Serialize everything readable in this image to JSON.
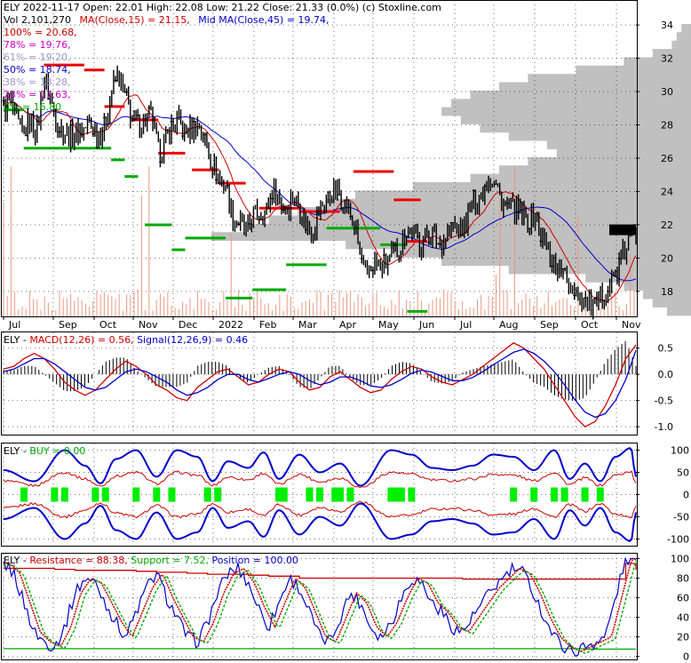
{
  "chart_data": [
    {
      "type": "candlestick",
      "panel": "price",
      "header": {
        "line1": "ELY  2022-11-17 Open: 22.01  High: 22.08  Low: 21.22  Close: 21.33 (0.0%)  (c) Stoxline.com",
        "vol_text": "Vol 2,101,270",
        "ma15_text": "MA(Close,15) = 21.15,",
        "ma45_text": "Mid MA(Close,45) = 19.74,"
      },
      "fib_labels": [
        {
          "text": "100% = 20.68,",
          "color": "#cc0000"
        },
        {
          "text": "78% = 19.76,",
          "color": "#cc00cc"
        },
        {
          "text": "61% = 19.20,",
          "color": "#9999cc"
        },
        {
          "text": "50% = 18.74,",
          "color": "#0000cc"
        },
        {
          "text": "38% = 18.28,",
          "color": "#9999cc"
        },
        {
          "text": "23% = 17.63,",
          "color": "#cc00cc"
        },
        {
          "text": "0% = 16.80",
          "color": "#00aa00"
        }
      ],
      "x_tick_labels": [
        "Jul",
        "Sep",
        "Oct",
        "Nov",
        "Dec",
        "2022",
        "Feb",
        "Mar",
        "Apr",
        "May",
        "Jun",
        "Jul",
        "Aug",
        "Sep",
        "Oct",
        "Nov"
      ],
      "y_ticks": [
        18,
        20,
        22,
        24,
        26,
        28,
        30,
        32,
        34
      ],
      "ylim": [
        16.5,
        35.5
      ],
      "close_path": [
        29,
        29.5,
        28,
        27.5,
        28.3,
        27.6,
        30.8,
        29.5,
        28,
        27.6,
        27.3,
        27.5,
        27.8,
        28,
        27.5,
        27.8,
        30,
        31,
        29.8,
        28.5,
        28,
        28.2,
        28.6,
        26.3,
        26.8,
        27.9,
        28.2,
        27.5,
        27.8,
        28,
        27,
        25.8,
        24.8,
        24.5,
        22.5,
        22.2,
        21.5,
        22.5,
        22.7,
        22.8,
        24.2,
        23.5,
        22.8,
        23.8,
        23,
        22,
        21.6,
        23,
        23.5,
        24,
        23.8,
        23,
        22.2,
        20.2,
        18.8,
        19.8,
        19.4,
        19.7,
        20.2,
        20.8,
        21.8,
        21.5,
        20.8,
        21.5,
        21.2,
        20.8,
        21.5,
        22,
        21.5,
        22.5,
        23.5,
        23.8,
        25,
        24.5,
        23.5,
        23,
        22.8,
        22.5,
        22.3,
        22.6,
        21.2,
        20.5,
        19.5,
        19.2,
        18.5,
        18.2,
        17.5,
        17.2,
        16.8,
        17.8,
        18.3,
        19,
        20,
        21.2,
        21.3
      ],
      "volume_profile": [
        {
          "price": 16.8,
          "value": 5
        },
        {
          "price": 17.3,
          "value": 8
        },
        {
          "price": 17.8,
          "value": 10
        },
        {
          "price": 18.3,
          "value": 14
        },
        {
          "price": 18.8,
          "value": 22
        },
        {
          "price": 19.3,
          "value": 38
        },
        {
          "price": 19.8,
          "value": 52
        },
        {
          "price": 20.3,
          "value": 62
        },
        {
          "price": 20.8,
          "value": 72
        },
        {
          "price": 21.3,
          "value": 100
        },
        {
          "price": 21.8,
          "value": 92
        },
        {
          "price": 22.3,
          "value": 88
        },
        {
          "price": 22.8,
          "value": 82
        },
        {
          "price": 23.3,
          "value": 76
        },
        {
          "price": 23.8,
          "value": 70
        },
        {
          "price": 24.3,
          "value": 58
        },
        {
          "price": 24.8,
          "value": 46
        },
        {
          "price": 25.3,
          "value": 40
        },
        {
          "price": 25.8,
          "value": 34
        },
        {
          "price": 26.3,
          "value": 28
        },
        {
          "price": 26.8,
          "value": 30
        },
        {
          "price": 27.3,
          "value": 38
        },
        {
          "price": 27.8,
          "value": 44
        },
        {
          "price": 28.3,
          "value": 48
        },
        {
          "price": 28.8,
          "value": 52
        },
        {
          "price": 29.3,
          "value": 50
        },
        {
          "price": 29.8,
          "value": 46
        },
        {
          "price": 30.3,
          "value": 40
        },
        {
          "price": 30.8,
          "value": 34
        },
        {
          "price": 31.3,
          "value": 24
        },
        {
          "price": 31.8,
          "value": 14
        },
        {
          "price": 32.3,
          "value": 8
        },
        {
          "price": 32.8,
          "value": 4
        },
        {
          "price": 33.3,
          "value": 3
        },
        {
          "price": 33.8,
          "value": 2
        }
      ],
      "resistance_segments": [
        {
          "start": 6,
          "end": 12,
          "price": 31.6
        },
        {
          "start": 12,
          "end": 15,
          "price": 31.3
        },
        {
          "start": 15,
          "end": 18,
          "price": 29.1
        },
        {
          "start": 19,
          "end": 23,
          "price": 28.3
        },
        {
          "start": 23,
          "end": 27,
          "price": 26.3
        },
        {
          "start": 28,
          "end": 32,
          "price": 25.3
        },
        {
          "start": 32,
          "end": 36,
          "price": 24.5
        },
        {
          "start": 38,
          "end": 44,
          "price": 23
        },
        {
          "start": 44,
          "end": 50,
          "price": 22.8
        },
        {
          "start": 52,
          "end": 58,
          "price": 25.2
        },
        {
          "start": 58,
          "end": 62,
          "price": 23.5
        },
        {
          "start": 60,
          "end": 63,
          "price": 21
        }
      ],
      "support_segments": [
        {
          "start": 0,
          "end": 3,
          "price": 28.9
        },
        {
          "start": 3,
          "end": 10,
          "price": 26.6
        },
        {
          "start": 10,
          "end": 16,
          "price": 26.6
        },
        {
          "start": 16,
          "end": 18,
          "price": 25.9
        },
        {
          "start": 18,
          "end": 20,
          "price": 24.9
        },
        {
          "start": 21,
          "end": 25,
          "price": 22
        },
        {
          "start": 25,
          "end": 27,
          "price": 20.5
        },
        {
          "start": 27,
          "end": 33,
          "price": 21.2
        },
        {
          "start": 33,
          "end": 37,
          "price": 17.6
        },
        {
          "start": 37,
          "end": 42,
          "price": 18.1
        },
        {
          "start": 42,
          "end": 48,
          "price": 19.6
        },
        {
          "start": 48,
          "end": 56,
          "price": 21.8
        },
        {
          "start": 56,
          "end": 60,
          "price": 20.8
        },
        {
          "start": 60,
          "end": 63,
          "price": 16.8
        }
      ],
      "right_marker_price": 21.7
    },
    {
      "type": "macd",
      "panel": "macd",
      "title_parts": [
        {
          "text": "ELY - ",
          "color": "#000000"
        },
        {
          "text": "MACD(12,26) = 0.56, ",
          "color": "#cc0000"
        },
        {
          "text": "Signal(12,26,9) = 0.46",
          "color": "#0000cc"
        }
      ],
      "y_ticks": [
        0.5,
        0.0,
        -0.5,
        -1.0
      ],
      "y_tick_labels": [
        "0.5",
        "0.0",
        "-0.5",
        "-1.0"
      ],
      "ylim": [
        -1.15,
        0.8
      ],
      "macd": [
        0.1,
        0.15,
        0.3,
        0.4,
        0.3,
        0.1,
        -0.15,
        -0.3,
        -0.4,
        -0.3,
        -0.1,
        0.1,
        0.25,
        0.15,
        0,
        -0.2,
        -0.3,
        -0.45,
        -0.5,
        -0.25,
        -0.1,
        0.05,
        0.1,
        -0.05,
        -0.2,
        -0.15,
        0,
        0.1,
        0.05,
        -0.15,
        -0.3,
        -0.25,
        -0.05,
        0.05,
        -0.1,
        -0.25,
        -0.35,
        -0.3,
        -0.1,
        0.05,
        0.15,
        0.1,
        -0.05,
        -0.15,
        -0.2,
        -0.1,
        0,
        0.15,
        0.3,
        0.45,
        0.6,
        0.5,
        0.3,
        0.1,
        -0.2,
        -0.5,
        -0.8,
        -1,
        -0.9,
        -0.6,
        -0.2,
        0.3,
        0.56
      ],
      "signal": [
        0.05,
        0.1,
        0.2,
        0.3,
        0.3,
        0.2,
        0.05,
        -0.1,
        -0.25,
        -0.3,
        -0.25,
        -0.1,
        0.05,
        0.1,
        0.05,
        -0.05,
        -0.15,
        -0.3,
        -0.4,
        -0.35,
        -0.25,
        -0.1,
        0,
        0,
        -0.1,
        -0.15,
        -0.08,
        0,
        0.05,
        0,
        -0.12,
        -0.2,
        -0.15,
        -0.05,
        -0.05,
        -0.12,
        -0.22,
        -0.25,
        -0.2,
        -0.1,
        0.02,
        0.08,
        0.04,
        -0.04,
        -0.12,
        -0.12,
        -0.06,
        0.05,
        0.18,
        0.3,
        0.42,
        0.48,
        0.4,
        0.25,
        0.05,
        -0.2,
        -0.48,
        -0.72,
        -0.82,
        -0.75,
        -0.5,
        -0.1,
        0.46
      ]
    },
    {
      "type": "oscillator",
      "panel": "buy",
      "title_parts": [
        {
          "text": "ELY - ",
          "color": "#000000"
        },
        {
          "text": "BUY = 0.00",
          "color": "#00aa00"
        }
      ],
      "y_ticks": [
        100,
        50,
        0,
        -50,
        -100
      ],
      "y_tick_labels": [
        "100",
        "50",
        "0",
        "-50",
        "-100"
      ],
      "ylim": [
        -115,
        115
      ],
      "envelope_nodes": [
        {
          "x": 0,
          "amp": 55
        },
        {
          "x": 3,
          "amp": 30
        },
        {
          "x": 6,
          "amp": 100
        },
        {
          "x": 8,
          "amp": 65
        },
        {
          "x": 9.5,
          "amp": 25
        },
        {
          "x": 11,
          "amp": 80
        },
        {
          "x": 13,
          "amp": 100
        },
        {
          "x": 15,
          "amp": 40
        },
        {
          "x": 17,
          "amp": 100
        },
        {
          "x": 19,
          "amp": 85
        },
        {
          "x": 20.5,
          "amp": 30
        },
        {
          "x": 22,
          "amp": 75
        },
        {
          "x": 24,
          "amp": 60
        },
        {
          "x": 25.5,
          "amp": 95
        },
        {
          "x": 27,
          "amp": 35
        },
        {
          "x": 29,
          "amp": 90
        },
        {
          "x": 31,
          "amp": 50
        },
        {
          "x": 33,
          "amp": 70
        },
        {
          "x": 35,
          "amp": 20
        },
        {
          "x": 38,
          "amp": 100
        },
        {
          "x": 40,
          "amp": 90
        },
        {
          "x": 42,
          "amp": 60
        },
        {
          "x": 44,
          "amp": 55
        },
        {
          "x": 46,
          "amp": 65
        },
        {
          "x": 48,
          "amp": 90
        },
        {
          "x": 50,
          "amp": 85
        },
        {
          "x": 52,
          "amp": 55
        },
        {
          "x": 54,
          "amp": 100
        },
        {
          "x": 55.5,
          "amp": 35
        },
        {
          "x": 57,
          "amp": 70
        },
        {
          "x": 58.5,
          "amp": 30
        },
        {
          "x": 60,
          "amp": 85
        },
        {
          "x": 61.5,
          "amp": 105
        },
        {
          "x": 62,
          "amp": 40
        }
      ],
      "buy_markers": [
        2,
        5,
        6,
        9,
        10,
        13,
        15,
        16.5,
        20,
        21,
        27,
        27.5,
        30,
        31,
        32.5,
        33,
        34,
        38,
        38.5,
        39,
        40,
        50,
        52,
        54,
        55,
        57,
        58.5
      ]
    },
    {
      "type": "oscillator",
      "panel": "position",
      "title_parts": [
        {
          "text": "ELY - ",
          "color": "#000000"
        },
        {
          "text": "Resistance = 88.38, ",
          "color": "#cc0000"
        },
        {
          "text": "Support = 7.52, ",
          "color": "#00aa00"
        },
        {
          "text": "Position = 100.00",
          "color": "#0000cc"
        }
      ],
      "y_ticks": [
        100,
        80,
        60,
        40,
        20,
        0
      ],
      "y_tick_labels": [
        "100",
        "80",
        "60",
        "40",
        "20",
        "0"
      ],
      "ylim": [
        -3,
        105
      ],
      "resistance": [
        90,
        90,
        90,
        90,
        90,
        89,
        89,
        88,
        88,
        88,
        88,
        88,
        88,
        87,
        87,
        86,
        86,
        86,
        85,
        85,
        84,
        84,
        84,
        84,
        83,
        83,
        82,
        82,
        82,
        80,
        80,
        80,
        80,
        80,
        80,
        80,
        80,
        80,
        80,
        80,
        80,
        80,
        80,
        80,
        80,
        79,
        79,
        79,
        79,
        79,
        79,
        79,
        79,
        79,
        79,
        79,
        79,
        79,
        79,
        79,
        79,
        95,
        88.38
      ],
      "support": [
        8,
        8,
        8,
        8,
        8,
        8,
        8,
        8,
        8,
        8,
        8,
        8,
        8,
        8,
        8,
        8,
        8,
        8,
        8,
        8,
        8,
        8,
        8,
        8,
        8,
        8,
        8,
        8,
        8,
        8,
        8,
        8,
        8,
        8,
        8,
        8,
        8,
        8,
        8,
        8,
        8,
        8,
        8,
        8,
        8,
        8,
        8,
        8,
        8,
        8,
        8,
        8,
        8,
        8,
        8,
        8,
        8,
        7.5,
        7.5,
        7.5,
        7.5,
        7.5,
        7.52
      ],
      "position": [
        95,
        85,
        55,
        25,
        15,
        10,
        30,
        65,
        80,
        75,
        55,
        35,
        20,
        45,
        70,
        85,
        60,
        40,
        20,
        15,
        35,
        65,
        85,
        90,
        75,
        50,
        30,
        55,
        80,
        70,
        45,
        20,
        15,
        40,
        65,
        55,
        30,
        20,
        35,
        60,
        80,
        75,
        55,
        45,
        30,
        25,
        40,
        55,
        70,
        80,
        90,
        85,
        65,
        40,
        20,
        10,
        5,
        10,
        15,
        20,
        60,
        100,
        100
      ]
    }
  ]
}
